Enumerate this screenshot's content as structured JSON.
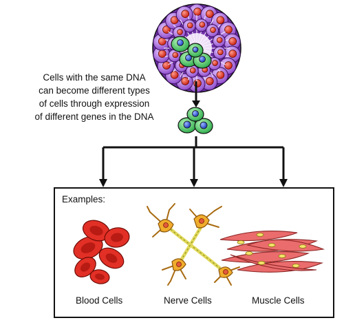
{
  "caption": {
    "lines": [
      "Cells with the same DNA",
      "can become different types",
      "of cells through expression",
      "of different genes in the DNA"
    ]
  },
  "examples_box": {
    "title": "Examples:",
    "cells": [
      {
        "label": "Blood Cells",
        "color": "#d8261c"
      },
      {
        "label": "Nerve Cells",
        "color": "#e8a21e"
      },
      {
        "label": "Muscle Cells",
        "color": "#e86565"
      }
    ]
  },
  "colors": {
    "stem_cluster_outer": "#a263d6",
    "stem_cell_green": "#38c25a",
    "nucleus_red": "#e03a2a",
    "nucleus_blue": "#2f5ce0",
    "arrow": "#111111"
  }
}
